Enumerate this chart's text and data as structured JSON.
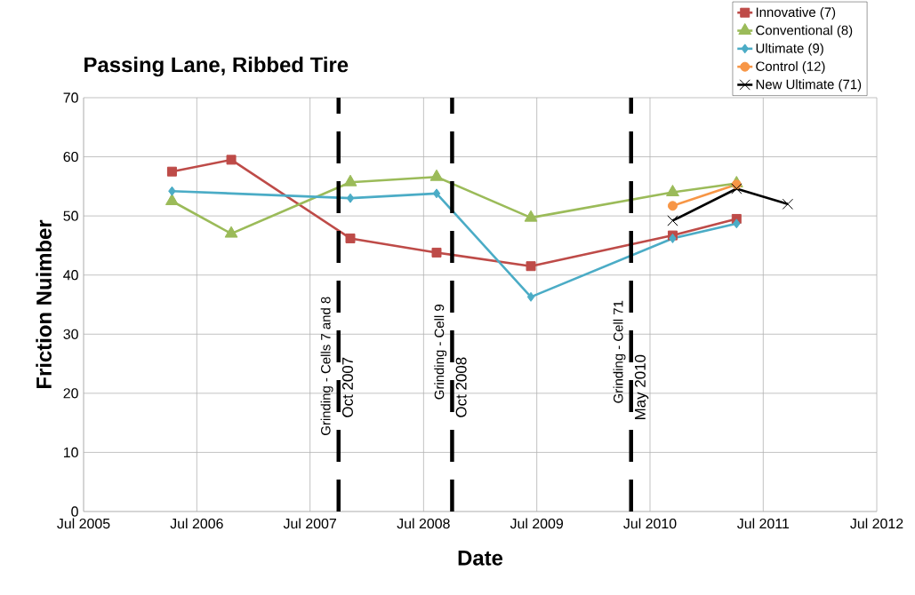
{
  "chart_data": {
    "type": "line",
    "title": "Passing Lane, Ribbed Tire",
    "xlabel": "Date",
    "ylabel": "Friction Nuimber",
    "series": [
      {
        "name": "Innovative (7)",
        "color": "#be4b48",
        "marker": "square",
        "x": [
          "2006-04-12",
          "2006-10-20",
          "2007-11-08",
          "2008-08-12",
          "2009-06-12",
          "2010-09-12",
          "2011-04-06"
        ],
        "values": [
          57.5,
          59.5,
          46.2,
          43.8,
          41.5,
          46.7,
          49.5
        ]
      },
      {
        "name": "Conventional (8)",
        "color": "#9bbb59",
        "marker": "triangle",
        "x": [
          "2006-04-12",
          "2006-10-20",
          "2007-11-08",
          "2008-08-12",
          "2009-06-12",
          "2010-09-12",
          "2011-04-06"
        ],
        "values": [
          52.5,
          47.0,
          55.7,
          56.6,
          49.7,
          54.0,
          55.5
        ]
      },
      {
        "name": "Ultimate (9)",
        "color": "#4bacc6",
        "marker": "diamond",
        "x": [
          "2006-04-12",
          "2007-11-08",
          "2008-08-12",
          "2009-06-12",
          "2010-09-12",
          "2011-04-06"
        ],
        "values": [
          54.2,
          53.0,
          53.8,
          36.3,
          46.2,
          48.7
        ]
      },
      {
        "name": "Control (12)",
        "color": "#f79646",
        "marker": "circle",
        "x": [
          "2010-09-12",
          "2011-04-06"
        ],
        "values": [
          51.7,
          55.3
        ]
      },
      {
        "name": "New Ultimate (71)",
        "color": "#000000",
        "marker": "cross",
        "x": [
          "2010-09-12",
          "2011-04-06",
          "2011-09-18"
        ],
        "values": [
          49.2,
          54.6,
          52.0
        ]
      }
    ],
    "xlim": [
      "2005-07",
      "2012-07"
    ],
    "xticks": [
      {
        "value": "2005-07",
        "label": "Jul 2005"
      },
      {
        "value": "2006-07",
        "label": "Jul 2006"
      },
      {
        "value": "2007-07",
        "label": "Jul 2007"
      },
      {
        "value": "2008-07",
        "label": "Jul 2008"
      },
      {
        "value": "2009-07",
        "label": "Jul 2009"
      },
      {
        "value": "2010-07",
        "label": "Jul 2010"
      },
      {
        "value": "2011-07",
        "label": "Jul 2011"
      },
      {
        "value": "2012-07",
        "label": "Jul 2012"
      }
    ],
    "ylim": [
      0,
      70
    ],
    "yticks": [
      0,
      10,
      20,
      30,
      40,
      50,
      60,
      70
    ],
    "grid": true,
    "legend": "top right",
    "ref_lines": [
      {
        "axis": "x",
        "value": "2007-10",
        "label": "Oct 2007",
        "color": "#000000",
        "line_style": "dashed"
      },
      {
        "axis": "x",
        "value": "2008-10",
        "label": "Oct 2008",
        "color": "#000000",
        "line_style": "dashed"
      },
      {
        "axis": "x",
        "value": "2010-05",
        "label": "May 2010",
        "color": "#000000",
        "line_style": "dashed"
      }
    ],
    "annotations": [
      {
        "text": "Grinding - Cells 7 and 8",
        "x": "2007-10",
        "y": 24.6
      },
      {
        "text": "Grinding - Cell 9",
        "x": "2008-10",
        "y": 27
      },
      {
        "text": "Grinding - Cell 71",
        "x": "2010-05",
        "y": 27
      }
    ]
  }
}
